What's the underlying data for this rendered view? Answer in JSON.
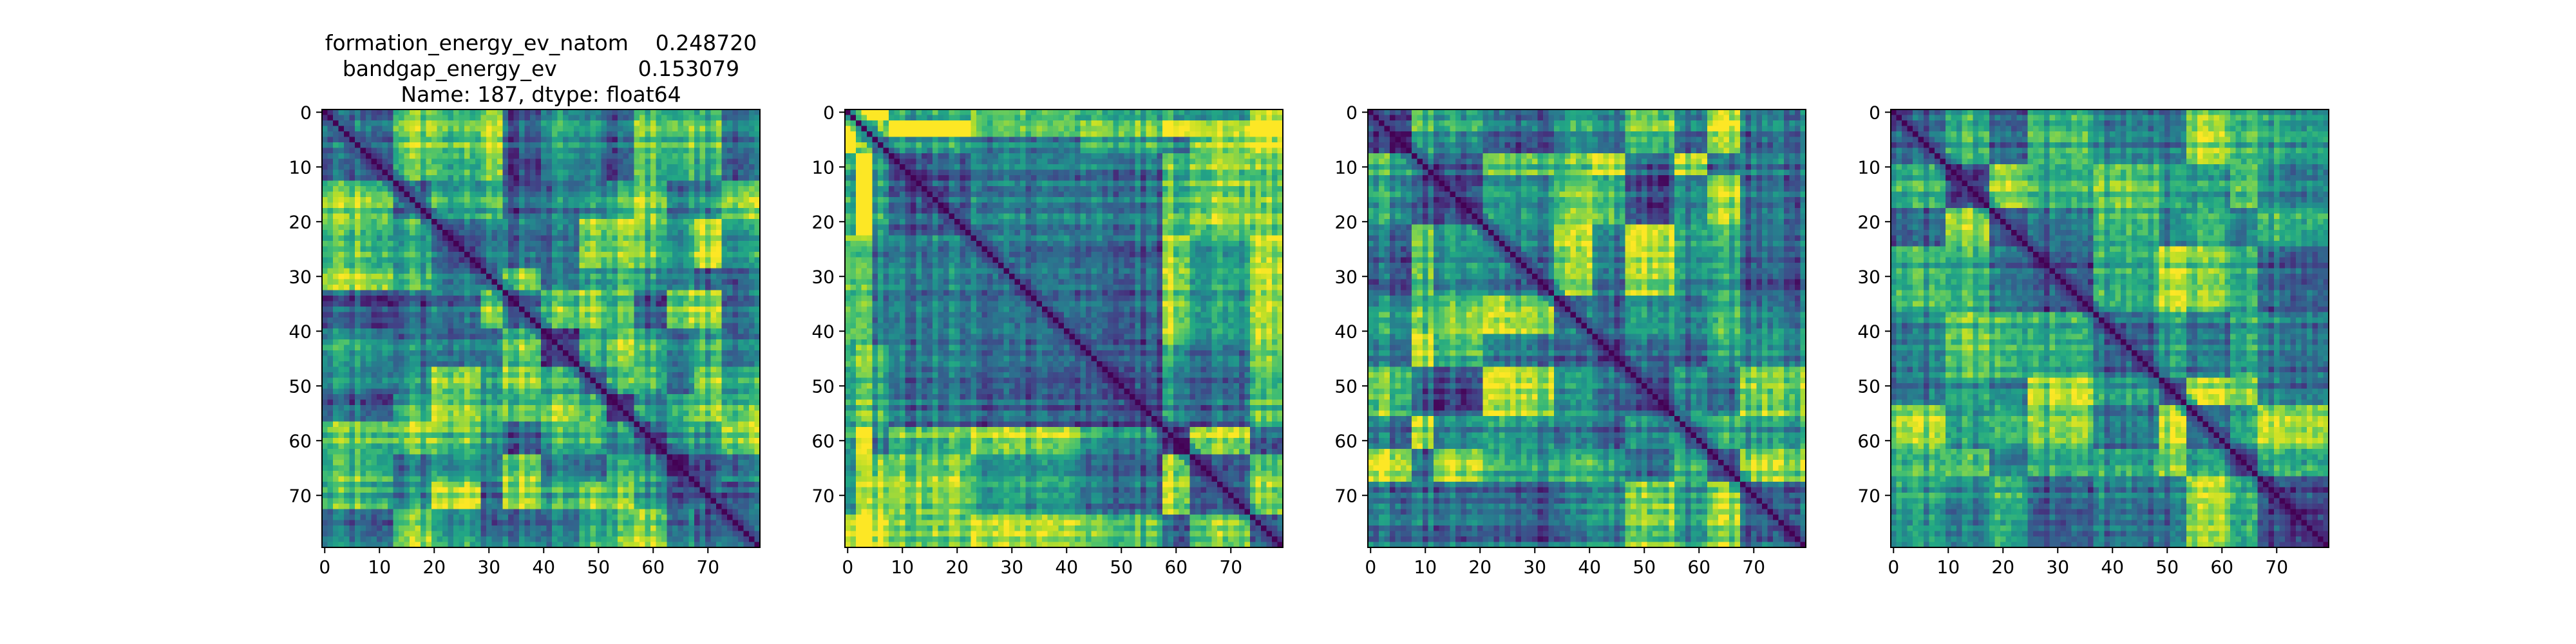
{
  "chart_data": [
    {
      "type": "heatmap",
      "title_lines": [
        "formation_energy_ev_natom    0.248720",
        "bandgap_energy_ev            0.153079",
        "Name: 187, dtype: float64"
      ],
      "xlabel": "",
      "ylabel": "",
      "size": 80,
      "colormap": "viridis",
      "diagonal_value": 0,
      "xticks": [
        0,
        10,
        20,
        30,
        40,
        50,
        60,
        70
      ],
      "yticks": [
        0,
        10,
        20,
        30,
        40,
        50,
        60,
        70
      ],
      "xlim": [
        -0.5,
        79.5
      ],
      "ylim": [
        79.5,
        -0.5
      ],
      "block_boundaries": [
        13,
        20,
        29,
        33,
        40,
        47,
        52,
        57,
        63,
        68,
        73
      ]
    },
    {
      "type": "heatmap",
      "title_lines": [],
      "xlabel": "",
      "ylabel": "",
      "size": 80,
      "colormap": "viridis",
      "diagonal_value": 0,
      "xticks": [
        0,
        10,
        20,
        30,
        40,
        50,
        60,
        70
      ],
      "yticks": [
        0,
        10,
        20,
        30,
        40,
        50,
        60,
        70
      ],
      "xlim": [
        -0.5,
        79.5
      ],
      "ylim": [
        79.5,
        -0.5
      ],
      "block_boundaries": [
        2,
        5,
        8,
        23,
        43,
        58,
        63,
        74
      ]
    },
    {
      "type": "heatmap",
      "title_lines": [],
      "xlabel": "",
      "ylabel": "",
      "size": 80,
      "colormap": "viridis",
      "diagonal_value": 0,
      "xticks": [
        0,
        10,
        20,
        30,
        40,
        50,
        60,
        70
      ],
      "yticks": [
        0,
        10,
        20,
        30,
        40,
        50,
        60,
        70
      ],
      "xlim": [
        -0.5,
        79.5
      ],
      "ylim": [
        79.5,
        -0.5
      ],
      "block_boundaries": [
        8,
        12,
        21,
        34,
        41,
        47,
        56,
        62,
        68
      ]
    },
    {
      "type": "heatmap",
      "title_lines": [],
      "xlabel": "",
      "ylabel": "",
      "size": 80,
      "colormap": "viridis",
      "diagonal_value": 0,
      "xticks": [
        0,
        10,
        20,
        30,
        40,
        50,
        60,
        70
      ],
      "yticks": [
        0,
        10,
        20,
        30,
        40,
        50,
        60,
        70
      ],
      "xlim": [
        -0.5,
        79.5
      ],
      "ylim": [
        79.5,
        -0.5
      ],
      "block_boundaries": [
        10,
        18,
        25,
        37,
        49,
        54,
        62,
        67
      ]
    }
  ]
}
